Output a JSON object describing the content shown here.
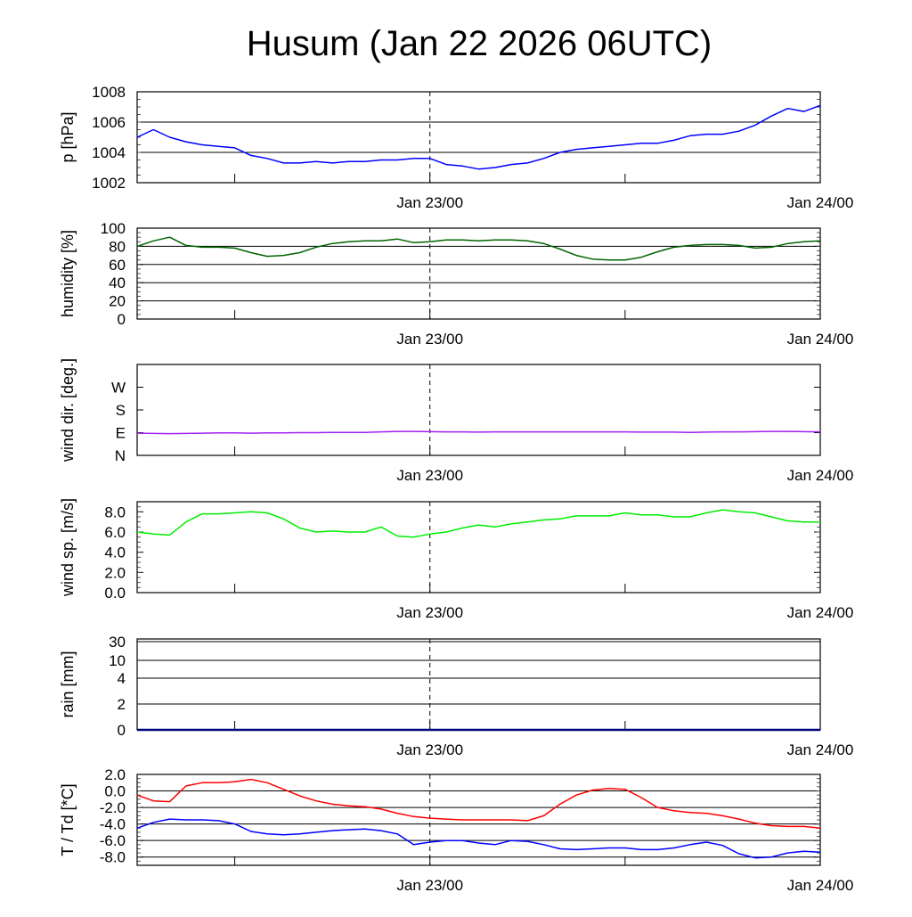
{
  "title": "Husum (Jan 22 2026 06UTC)",
  "colors": {
    "pressure": "#0000ff",
    "humidity": "#006400",
    "wind_dir": "#a020f0",
    "wind_speed": "#00ee00",
    "rain": "#000080",
    "temperature": "#ff0000",
    "dewpoint": "#0000ff"
  },
  "chart_data": [
    {
      "type": "line",
      "ylabel": "p [hPa]",
      "ylim": [
        1002,
        1008
      ],
      "yticks": [
        {
          "v": 1002,
          "label": "1002"
        },
        {
          "v": 1004,
          "label": "1004"
        },
        {
          "v": 1006,
          "label": "1006"
        },
        {
          "v": 1008,
          "label": "1008"
        }
      ],
      "xticklabels": [
        "Jan 23/00",
        "Jan 24/00"
      ],
      "series": [
        {
          "name": "pressure",
          "values": [
            1005.0,
            1005.5,
            1005.0,
            1004.7,
            1004.5,
            1004.4,
            1004.3,
            1003.8,
            1003.6,
            1003.3,
            1003.3,
            1003.4,
            1003.3,
            1003.4,
            1003.4,
            1003.5,
            1003.5,
            1003.6,
            1003.6,
            1003.2,
            1003.1,
            1002.9,
            1003.0,
            1003.2,
            1003.3,
            1003.6,
            1004.0,
            1004.2,
            1004.3,
            1004.4,
            1004.5,
            1004.6,
            1004.6,
            1004.8,
            1005.1,
            1005.2,
            1005.2,
            1005.4,
            1005.8,
            1006.4,
            1006.9,
            1006.7,
            1007.1
          ]
        }
      ]
    },
    {
      "type": "line",
      "ylabel": "humidity [%]",
      "ylim": [
        0,
        100
      ],
      "yticks": [
        {
          "v": 0,
          "label": "0"
        },
        {
          "v": 20,
          "label": "20"
        },
        {
          "v": 40,
          "label": "40"
        },
        {
          "v": 60,
          "label": "60"
        },
        {
          "v": 80,
          "label": "80"
        },
        {
          "v": 100,
          "label": "100"
        }
      ],
      "xticklabels": [
        "Jan 23/00",
        "Jan 24/00"
      ],
      "series": [
        {
          "name": "humidity",
          "values": [
            80,
            86,
            90,
            81,
            79,
            79,
            78,
            73,
            69,
            70,
            73,
            79,
            83,
            85,
            86,
            86,
            88,
            84,
            85,
            87,
            87,
            86,
            87,
            87,
            86,
            83,
            77,
            70,
            66,
            65,
            65,
            68,
            74,
            79,
            81,
            82,
            82,
            81,
            78,
            79,
            83,
            85,
            86
          ]
        }
      ]
    },
    {
      "type": "line",
      "ylabel": "wind dir. [deg.]",
      "ylim": [
        0,
        360
      ],
      "yticks": [
        {
          "v": 0,
          "label": "N"
        },
        {
          "v": 90,
          "label": "E"
        },
        {
          "v": 180,
          "label": "S"
        },
        {
          "v": 270,
          "label": "W"
        }
      ],
      "xticklabels": [
        "Jan 23/00",
        "Jan 24/00"
      ],
      "series": [
        {
          "name": "wind direction",
          "values": [
            88,
            87,
            86,
            87,
            88,
            89,
            89,
            88,
            89,
            89,
            90,
            90,
            91,
            91,
            91,
            93,
            95,
            95,
            94,
            93,
            93,
            92,
            93,
            93,
            93,
            93,
            93,
            93,
            93,
            93,
            93,
            92,
            92,
            92,
            91,
            92,
            93,
            93,
            94,
            95,
            95,
            94,
            93
          ]
        }
      ]
    },
    {
      "type": "line",
      "ylabel": "wind sp. [m/s]",
      "ylim": [
        0,
        9
      ],
      "yticks": [
        {
          "v": 0,
          "label": "0.0"
        },
        {
          "v": 2,
          "label": "2.0"
        },
        {
          "v": 4,
          "label": "4.0"
        },
        {
          "v": 6,
          "label": "6.0"
        },
        {
          "v": 8,
          "label": "8.0"
        }
      ],
      "xticklabels": [
        "Jan 23/00",
        "Jan 24/00"
      ],
      "series": [
        {
          "name": "wind speed",
          "values": [
            6.0,
            5.8,
            5.7,
            7.0,
            7.8,
            7.8,
            7.9,
            8.0,
            7.9,
            7.3,
            6.4,
            6.0,
            6.1,
            6.0,
            6.0,
            6.5,
            5.6,
            5.5,
            5.8,
            6.0,
            6.4,
            6.7,
            6.5,
            6.8,
            7.0,
            7.2,
            7.3,
            7.6,
            7.6,
            7.6,
            7.9,
            7.7,
            7.7,
            7.5,
            7.5,
            7.9,
            8.2,
            8.0,
            7.9,
            7.5,
            7.1,
            7.0,
            7.0
          ]
        }
      ]
    },
    {
      "type": "line",
      "ylabel": "rain [mm]",
      "ylim": [
        0,
        30
      ],
      "yticks": [
        {
          "v": 0,
          "label": "0"
        },
        {
          "v": 2,
          "label": "2"
        },
        {
          "v": 4,
          "label": "4"
        },
        {
          "v": 10,
          "label": "10"
        },
        {
          "v": 30,
          "label": "30"
        }
      ],
      "xticklabels": [
        "Jan 23/00",
        "Jan 24/00"
      ],
      "series": [
        {
          "name": "rain",
          "values": [
            0,
            0,
            0,
            0,
            0,
            0,
            0,
            0,
            0,
            0,
            0,
            0,
            0,
            0,
            0,
            0,
            0,
            0,
            0,
            0,
            0,
            0,
            0,
            0,
            0,
            0,
            0,
            0,
            0,
            0,
            0,
            0,
            0,
            0,
            0,
            0,
            0,
            0,
            0,
            0,
            0,
            0,
            0
          ]
        }
      ]
    },
    {
      "type": "line",
      "ylabel": "T / Td [*C]",
      "ylim": [
        -9,
        2
      ],
      "yticks": [
        {
          "v": -8,
          "label": "-8.0"
        },
        {
          "v": -6,
          "label": "-6.0"
        },
        {
          "v": -4,
          "label": "-4.0"
        },
        {
          "v": -2,
          "label": "-2.0"
        },
        {
          "v": 0,
          "label": "0.0"
        },
        {
          "v": 2,
          "label": "2.0"
        }
      ],
      "xticklabels": [
        "Jan 23/00",
        "Jan 24/00"
      ],
      "series": [
        {
          "name": "temperature",
          "values": [
            -0.5,
            -1.2,
            -1.3,
            0.6,
            1.0,
            1.0,
            1.1,
            1.4,
            1.0,
            0.2,
            -0.6,
            -1.2,
            -1.6,
            -1.8,
            -1.9,
            -2.2,
            -2.7,
            -3.1,
            -3.3,
            -3.4,
            -3.5,
            -3.5,
            -3.5,
            -3.5,
            -3.6,
            -3.0,
            -1.6,
            -0.5,
            0.1,
            0.3,
            0.2,
            -0.8,
            -2.0,
            -2.4,
            -2.6,
            -2.7,
            -3.0,
            -3.4,
            -3.9,
            -4.2,
            -4.3,
            -4.3,
            -4.5
          ]
        },
        {
          "name": "dewpoint",
          "values": [
            -4.5,
            -3.8,
            -3.4,
            -3.5,
            -3.5,
            -3.6,
            -4.0,
            -4.9,
            -5.2,
            -5.3,
            -5.2,
            -5.0,
            -4.8,
            -4.7,
            -4.6,
            -4.8,
            -5.2,
            -6.5,
            -6.2,
            -6.0,
            -6.0,
            -6.3,
            -6.5,
            -6.0,
            -6.1,
            -6.5,
            -7.0,
            -7.1,
            -7.0,
            -6.9,
            -6.9,
            -7.1,
            -7.1,
            -6.9,
            -6.5,
            -6.2,
            -6.6,
            -7.6,
            -8.1,
            -8.0,
            -7.5,
            -7.3,
            -7.4
          ]
        }
      ]
    }
  ]
}
